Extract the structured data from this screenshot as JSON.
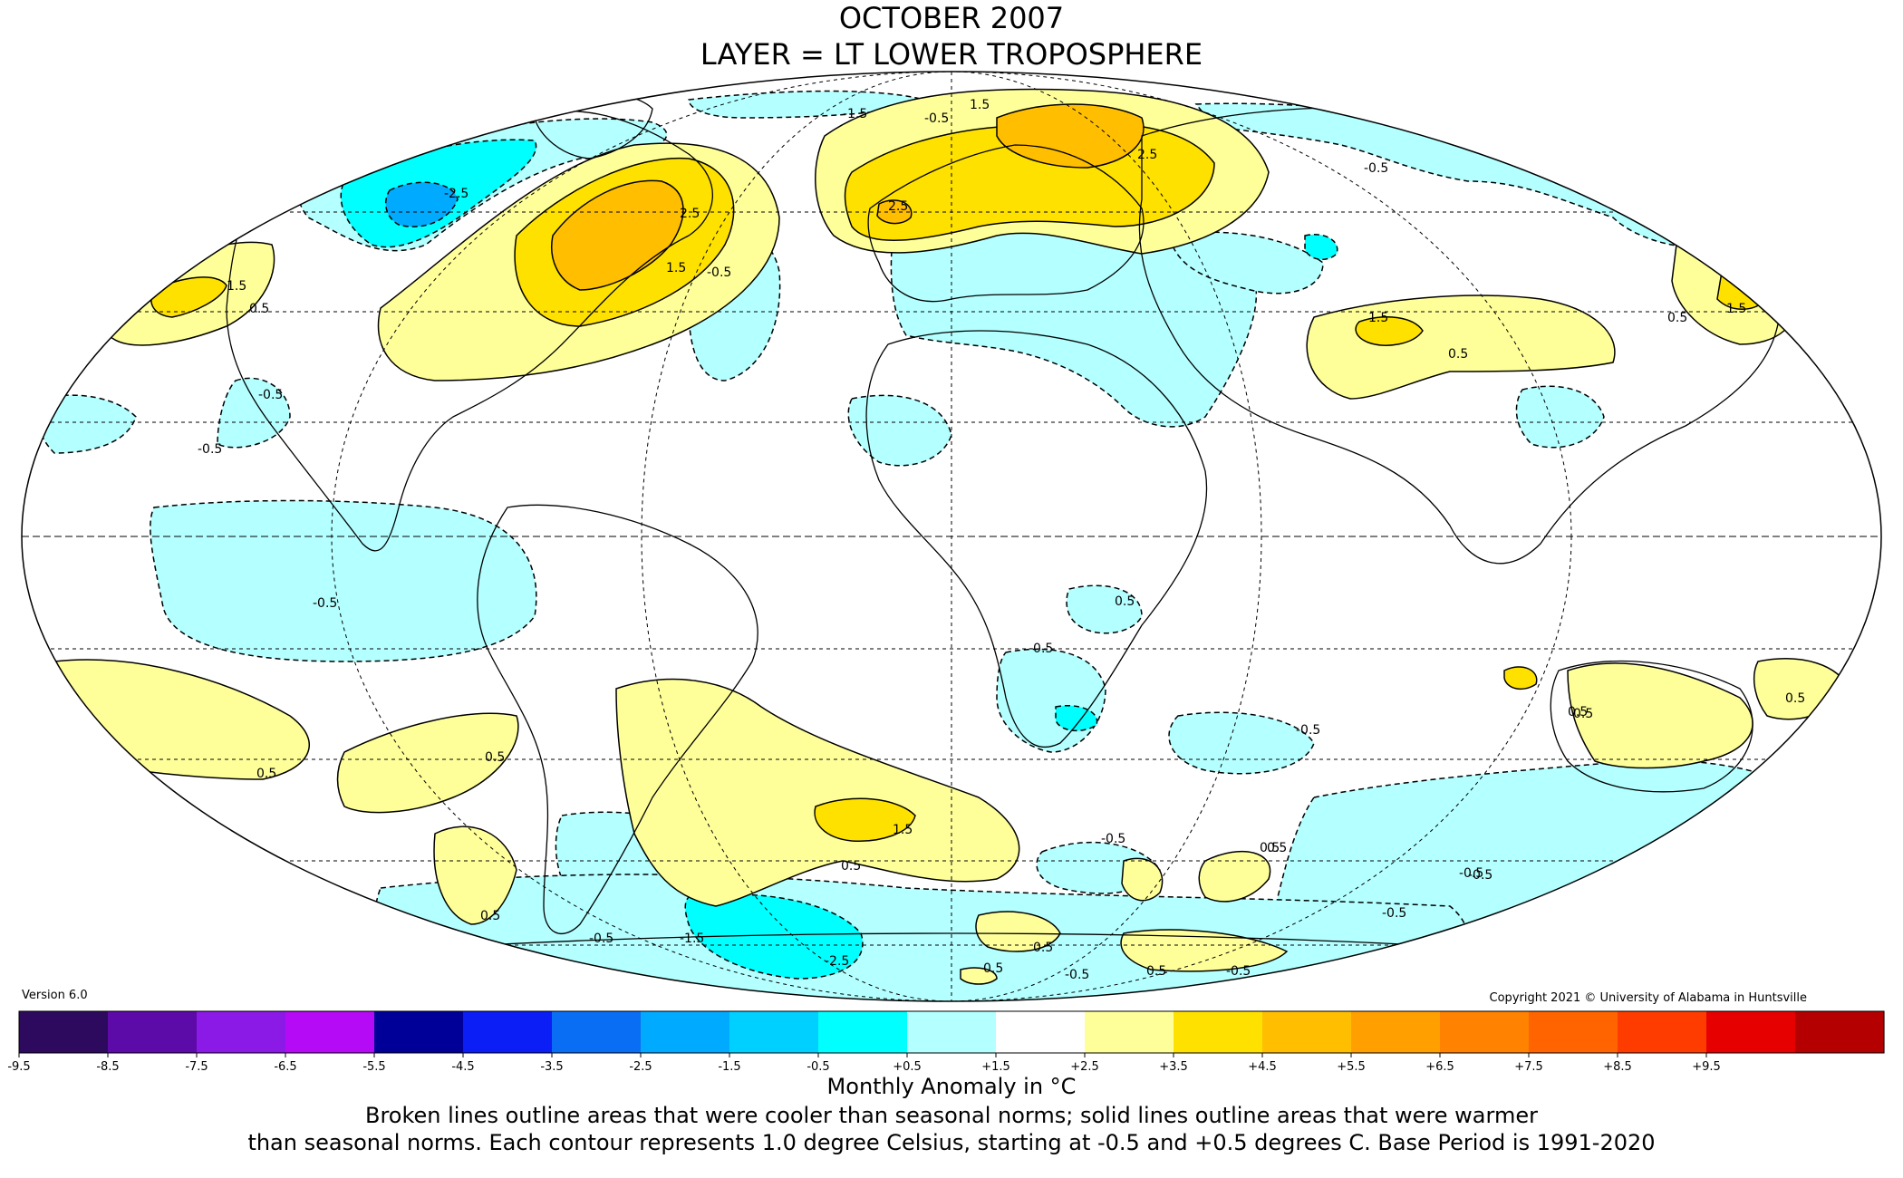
{
  "title_line1": "OCTOBER 2007",
  "title_line2": "LAYER = LT LOWER TROPOSPHERE",
  "version": "Version 6.0",
  "copyright": "Copyright 2021 © University of Alabama in Huntsville",
  "units_label": "Monthly Anomaly in °C",
  "note_line1": "Broken lines outline areas that were cooler than seasonal norms; solid lines outline areas that were warmer",
  "note_line2": "than seasonal norms. Each contour represents 1.0 degree Celsius, starting at -0.5 and +0.5 degrees C. Base Period is 1991-2020",
  "colorbar": {
    "ticks": [
      "-9.5",
      "-8.5",
      "-7.5",
      "-6.5",
      "-5.5",
      "-4.5",
      "-3.5",
      "-2.5",
      "-1.5",
      "-0.5",
      "+0.5",
      "+1.5",
      "+2.5",
      "+3.5",
      "+4.5",
      "+5.5",
      "+6.5",
      "+7.5",
      "+8.5",
      "+9.5"
    ],
    "colors": [
      "#2d0a5e",
      "#5c0aa8",
      "#8c1ae6",
      "#b40af5",
      "#000099",
      "#0a1ef5",
      "#0a6ef5",
      "#00aaff",
      "#00d0ff",
      "#00ffff",
      "#b4ffff",
      "#ffffff",
      "#ffff9a",
      "#ffe100",
      "#ffbe00",
      "#ffa000",
      "#ff8200",
      "#ff6400",
      "#ff3c00",
      "#e60000",
      "#b40000"
    ]
  },
  "contour_labels": [
    {
      "text": "-1.5",
      "cold": true
    },
    {
      "text": "-0.5",
      "cold": true
    },
    {
      "text": "-2.5",
      "cold": true
    },
    {
      "text": "-0.5",
      "cold": true
    },
    {
      "text": "2.5",
      "cold": false
    },
    {
      "text": "1.5",
      "cold": false
    },
    {
      "text": "2.5",
      "cold": false
    },
    {
      "text": "2.5",
      "cold": false
    },
    {
      "text": "1.5",
      "cold": false
    },
    {
      "text": "-0.5",
      "cold": true
    },
    {
      "text": "1.5",
      "cold": false
    },
    {
      "text": "0.5",
      "cold": false
    },
    {
      "text": "1.5",
      "cold": false
    },
    {
      "text": "0.5",
      "cold": false
    },
    {
      "text": "1.5",
      "cold": false
    },
    {
      "text": "0.5",
      "cold": false
    },
    {
      "text": "-0.5",
      "cold": true
    },
    {
      "text": "-0.5",
      "cold": true
    },
    {
      "text": "-0.5",
      "cold": true
    },
    {
      "text": "-0.5",
      "cold": true
    },
    {
      "text": "0.5",
      "cold": false
    },
    {
      "text": "0.5",
      "cold": false
    },
    {
      "text": "0.5",
      "cold": false
    },
    {
      "text": "-0.5",
      "cold": true
    },
    {
      "text": "0.5",
      "cold": false
    },
    {
      "text": "1.5",
      "cold": false
    },
    {
      "text": "0.5",
      "cold": false
    },
    {
      "text": "0.5",
      "cold": false
    },
    {
      "text": "0.5",
      "cold": false
    },
    {
      "text": "-0.5",
      "cold": true
    },
    {
      "text": "-0.5",
      "cold": true
    },
    {
      "text": "0.5",
      "cold": false
    },
    {
      "text": "-0.5",
      "cold": true
    },
    {
      "text": "-0.5",
      "cold": true
    },
    {
      "text": "-1.5",
      "cold": true
    },
    {
      "text": "-2.5",
      "cold": true
    },
    {
      "text": "0.5",
      "cold": false
    },
    {
      "text": "0.5",
      "cold": false
    },
    {
      "text": "-0.5",
      "cold": true
    },
    {
      "text": "0.5",
      "cold": false
    },
    {
      "text": "-0.5",
      "cold": true
    },
    {
      "text": "0.5",
      "cold": false
    },
    {
      "text": "0.5",
      "cold": false
    },
    {
      "text": "-0.5",
      "cold": true
    }
  ]
}
